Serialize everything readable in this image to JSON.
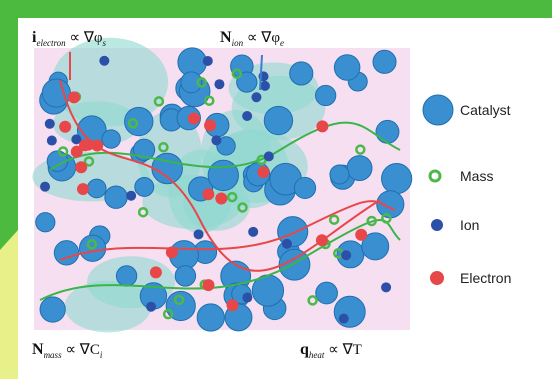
{
  "equations": [
    {
      "base": "i",
      "sub": "electron",
      "rhs": "∝ ∇φ",
      "rhs_sub": "s"
    },
    {
      "base": "N",
      "sub": "ion",
      "rhs": "∝ ∇φ",
      "rhs_sub": "e"
    },
    {
      "base": "N",
      "sub": "mass",
      "rhs": "∝ ∇C",
      "rhs_sub": "i"
    },
    {
      "base": "q",
      "sub": "heat",
      "rhs": "∝ ∇T",
      "rhs_sub": null
    }
  ],
  "legend": [
    "Catalyst",
    "Mass",
    "Ion",
    "Electron"
  ]
}
